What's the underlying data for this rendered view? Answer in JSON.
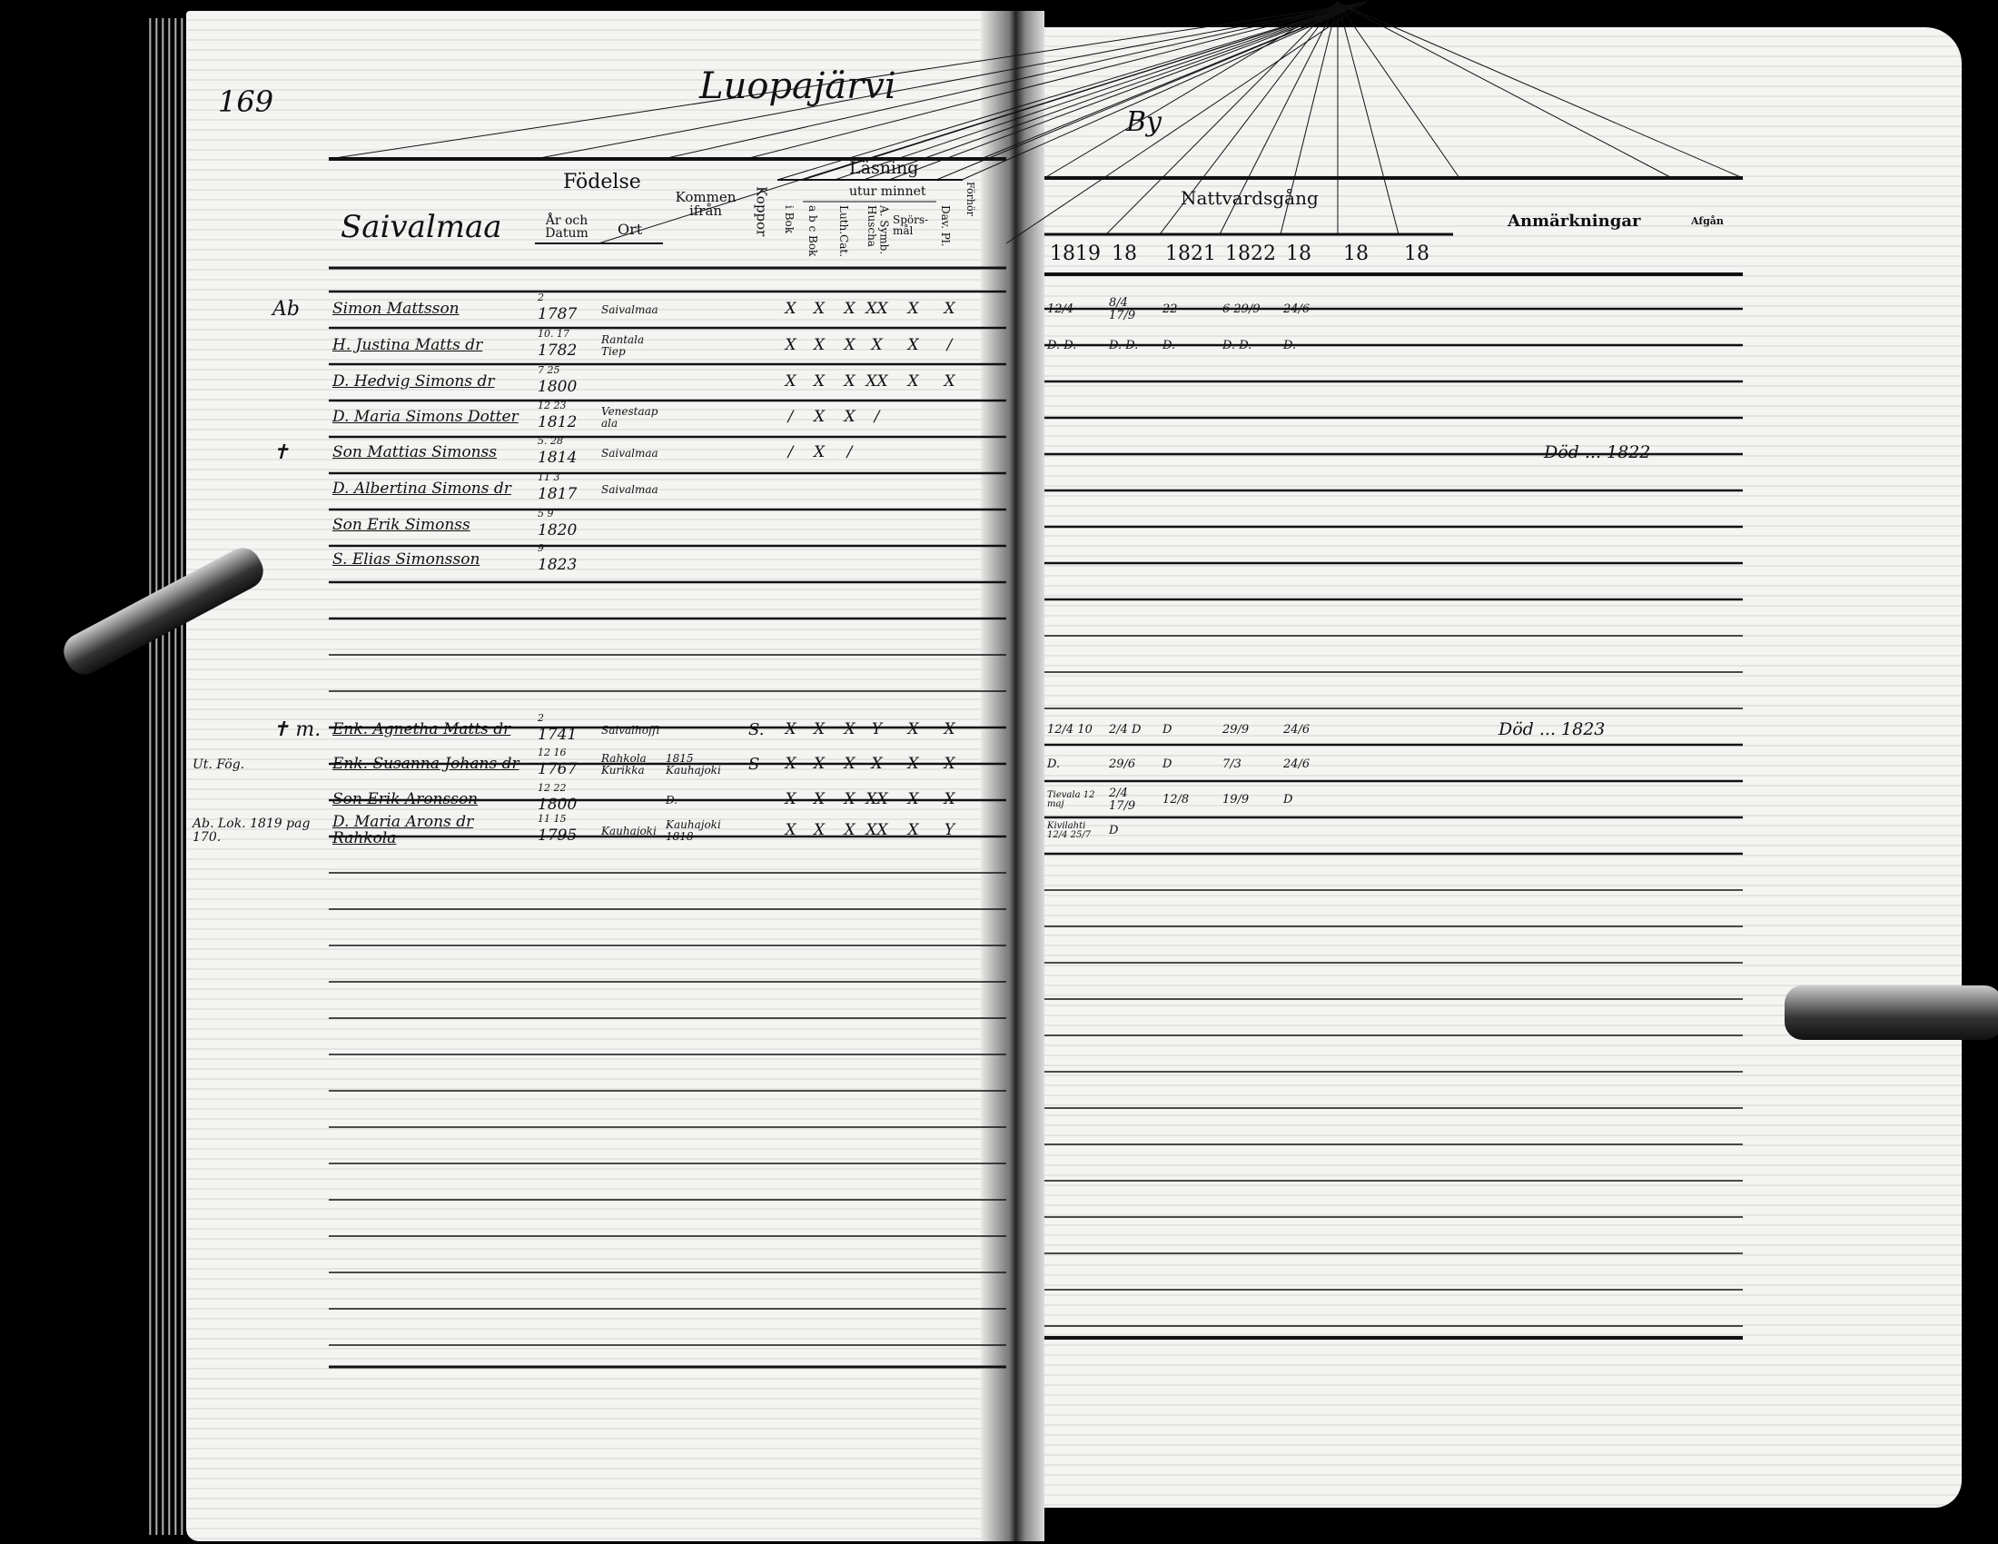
{
  "page_number": "169",
  "village_name": "Luopajärvi",
  "village_suffix": "By",
  "left_header": {
    "household_label": "Saivalmaa",
    "birth": "Födelse",
    "birth_year_date": "År och Datum",
    "birth_place": "Ort",
    "came_from": "Kommen ifrån",
    "smallpox": "Koppor",
    "reading": "Läsning",
    "by_heart": "utur minnet",
    "in_book": "i Bok",
    "abc_book": "a b c Bok",
    "luth_cat": "Luth.Cat.",
    "symbol": "A. Symb. Huscha",
    "questions": "Spörs-mål",
    "dav_pl": "Dav. Pl.",
    "examinations": "Förhör"
  },
  "right_header": {
    "communion": "Nattvardsgång",
    "years": [
      "1819",
      "18",
      "1821",
      "1822",
      "18",
      "18",
      "18"
    ],
    "remarks": "Anmärkningar",
    "departure": "Afgån"
  },
  "rows": [
    {
      "mark": "Ab",
      "name": "Simon Mattsson",
      "day": "2",
      "year": "1787",
      "place": "Saivalmaa",
      "from": "",
      "koppor": "",
      "reading": [
        "X",
        "X",
        "X",
        "XX",
        "X",
        "X"
      ],
      "communion": [
        "12/4",
        "8/4 17/9",
        "22",
        "6 29/9",
        "24/6",
        "",
        ""
      ],
      "remark": ""
    },
    {
      "mark": "",
      "name": "H. Justina Matts dr",
      "day": "10. 17",
      "year": "1782",
      "place": "Rantala Tiep",
      "from": "",
      "koppor": "",
      "reading": [
        "X",
        "X",
        "X",
        "X",
        "X",
        "/"
      ],
      "communion": [
        "D. D.",
        "D. D.",
        "D.",
        "D. D.",
        "D.",
        "",
        ""
      ],
      "remark": ""
    },
    {
      "mark": "",
      "name": "D. Hedvig Simons dr",
      "day": "7 25",
      "year": "1800",
      "place": "",
      "from": "",
      "koppor": "",
      "reading": [
        "X",
        "X",
        "X",
        "XX",
        "X",
        "X"
      ],
      "communion": [
        "",
        "",
        "",
        "",
        "",
        "",
        ""
      ],
      "remark": ""
    },
    {
      "mark": "",
      "name": "D. Maria Simons Dotter",
      "day": "12 23",
      "year": "1812",
      "place": "Venestaapala",
      "from": "",
      "koppor": "",
      "reading": [
        "/",
        "X",
        "X",
        "/",
        "",
        ""
      ],
      "communion": [
        "",
        "",
        "",
        "",
        "",
        "",
        ""
      ],
      "remark": ""
    },
    {
      "mark": "✝",
      "name": "Son Mattias Simonss",
      "day": "5. 28",
      "year": "1814",
      "place": "Saivalmaa",
      "from": "",
      "koppor": "",
      "reading": [
        "/",
        "X",
        "/",
        "",
        "",
        ""
      ],
      "communion": [
        "",
        "",
        "",
        "",
        "",
        "",
        ""
      ],
      "remark": "Död ... 1822"
    },
    {
      "mark": "",
      "name": "D. Albertina Simons dr",
      "day": "11 3",
      "year": "1817",
      "place": "Saivalmaa",
      "from": "",
      "koppor": "",
      "reading": [
        "",
        "",
        "",
        "",
        "",
        ""
      ],
      "communion": [
        "",
        "",
        "",
        "",
        "",
        "",
        ""
      ],
      "remark": ""
    },
    {
      "mark": "",
      "name": "Son Erik Simonss",
      "day": "5 9",
      "year": "1820",
      "place": "",
      "from": "",
      "koppor": "",
      "reading": [
        "",
        "",
        "",
        "",
        "",
        ""
      ],
      "communion": [
        "",
        "",
        "",
        "",
        "",
        "",
        ""
      ],
      "remark": ""
    },
    {
      "mark": "",
      "name": "S. Elias Simonsson",
      "day": "9",
      "year": "1823",
      "place": "",
      "from": "",
      "koppor": "",
      "reading": [
        "",
        "",
        "",
        "",
        "",
        ""
      ],
      "communion": [
        "",
        "",
        "",
        "",
        "",
        "",
        ""
      ],
      "remark": ""
    },
    {
      "mark": "✝ m.",
      "name": "Enk. Agnetha Matts dr",
      "day": "2",
      "year": "1741",
      "place": "Saivalhoffi",
      "from": "",
      "koppor": "S.",
      "reading": [
        "X",
        "X",
        "X",
        "Y",
        "X",
        "X"
      ],
      "communion": [
        "12/4 10",
        "2/4 D",
        "D",
        "29/9",
        "24/6",
        "",
        ""
      ],
      "remark": "Död ... 1823"
    },
    {
      "mark": "Ut. Fög.",
      "name": "Enk. Susanna Johans dr",
      "day": "12 16",
      "year": "1767",
      "place": "Rahkola Kurikka",
      "from": "1815 Kauhajoki",
      "koppor": "S",
      "reading": [
        "X",
        "X",
        "X",
        "X",
        "X",
        "X"
      ],
      "communion": [
        "D.",
        "29/6",
        "D",
        "7/3",
        "24/6",
        "",
        ""
      ],
      "remark": ""
    },
    {
      "mark": "",
      "name": "Son Erik Aronsson",
      "day": "12 22",
      "year": "1800",
      "place": "",
      "from": "D.",
      "koppor": "",
      "reading": [
        "X",
        "X",
        "X",
        "XX",
        "X",
        "X"
      ],
      "communion": [
        "Tievala 12 maj",
        "2/4 17/9",
        "12/8",
        "19/9",
        "D",
        "",
        ""
      ],
      "remark": ""
    },
    {
      "mark": "Ab. Lok. 1819 pag 170.",
      "name": "D. Maria Arons dr Rahkola",
      "day": "11 15",
      "year": "1795",
      "place": "Kauhajoki",
      "from": "Kauhajoki 1818",
      "koppor": "",
      "reading": [
        "X",
        "X",
        "X",
        "XX",
        "X",
        "Y"
      ],
      "communion": [
        "Kivilahti 12/4 25/7",
        "D",
        "",
        "",
        "",
        "",
        ""
      ],
      "remark": ""
    }
  ]
}
